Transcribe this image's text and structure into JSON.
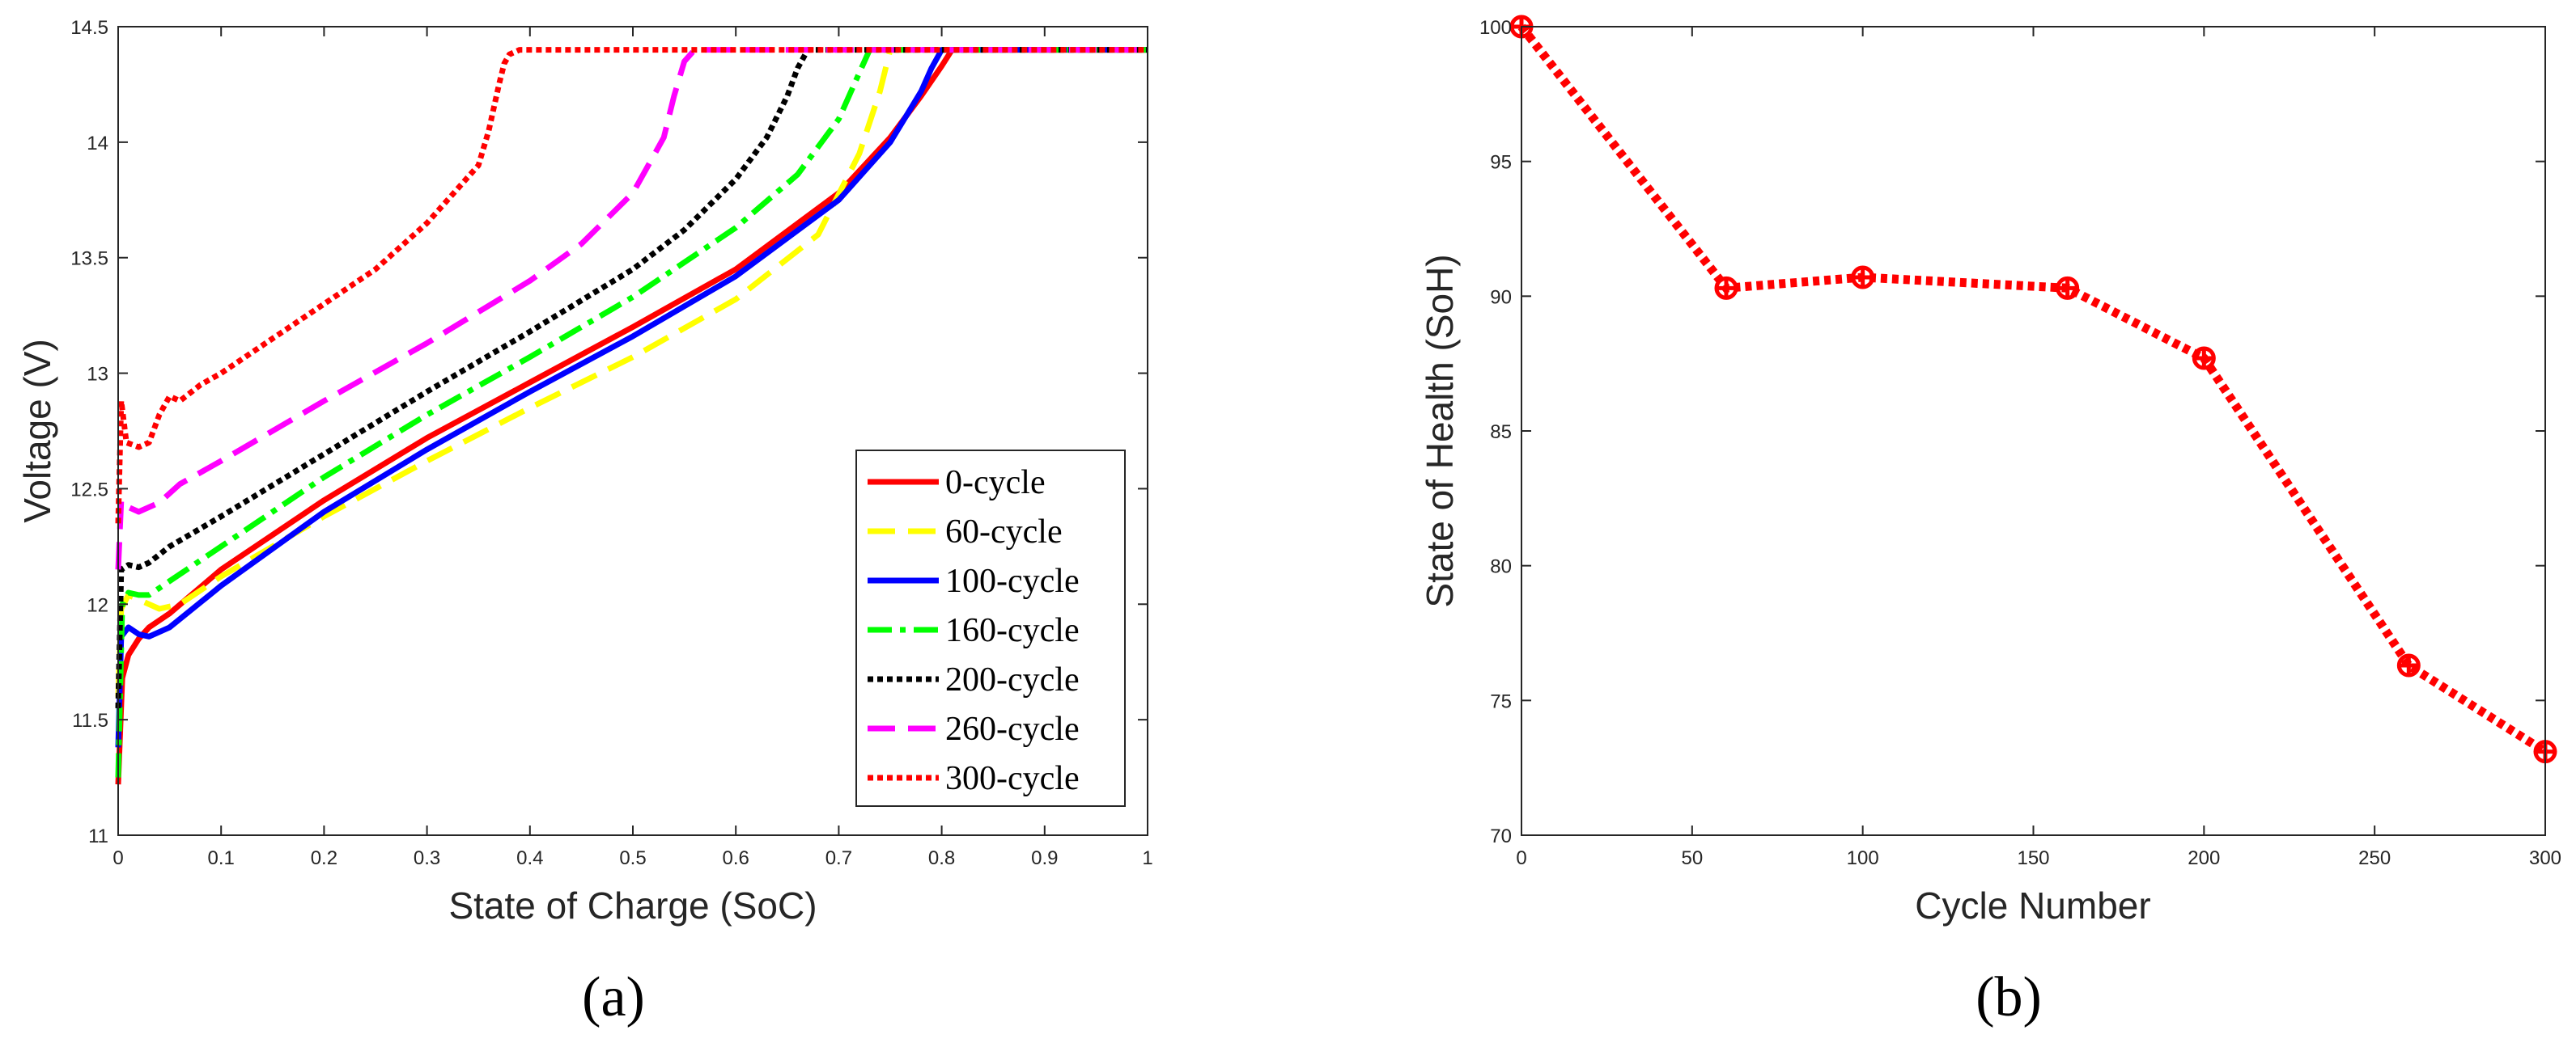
{
  "figure": {
    "panel_a_label": "(a)",
    "panel_b_label": "(b)"
  },
  "colors": {
    "red": "#ff0000",
    "yellow": "#ffff00",
    "blue": "#0000ff",
    "green": "#00ff00",
    "black": "#000000",
    "magenta": "#ff00ff"
  },
  "chart_data": [
    {
      "id": "a",
      "type": "line",
      "title": "",
      "xlabel": "State of Charge (SoC)",
      "ylabel": "Voltage (V)",
      "xlim": [
        0,
        1
      ],
      "ylim": [
        11,
        14.5
      ],
      "xticks": [
        0,
        0.1,
        0.2,
        0.3,
        0.4,
        0.5,
        0.6,
        0.7,
        0.8,
        0.9,
        1
      ],
      "xtick_labels": [
        "0",
        "0.1",
        "0.2",
        "0.3",
        "0.4",
        "0.5",
        "0.6",
        "0.7",
        "0.8",
        "0.9",
        "1"
      ],
      "yticks": [
        11,
        11.5,
        12,
        12.5,
        13,
        13.5,
        14,
        14.5
      ],
      "ytick_labels": [
        "11",
        "11.5",
        "12",
        "12.5",
        "13",
        "13.5",
        "14",
        "14.5"
      ],
      "grid": false,
      "legend_position": "bottom-right",
      "series": [
        {
          "name": "0-cycle",
          "color": "#ff0000",
          "style": "solid",
          "x": [
            0,
            0.004,
            0.01,
            0.02,
            0.03,
            0.05,
            0.1,
            0.2,
            0.3,
            0.4,
            0.5,
            0.6,
            0.7,
            0.75,
            0.78,
            0.8,
            0.81,
            1
          ],
          "y": [
            11.22,
            11.68,
            11.78,
            11.85,
            11.9,
            11.96,
            12.15,
            12.45,
            12.72,
            12.96,
            13.2,
            13.45,
            13.78,
            14.02,
            14.2,
            14.33,
            14.4,
            14.4
          ]
        },
        {
          "name": "60-cycle",
          "color": "#ffff00",
          "style": "dashed",
          "x": [
            0,
            0.003,
            0.01,
            0.02,
            0.04,
            0.06,
            0.1,
            0.2,
            0.3,
            0.4,
            0.5,
            0.6,
            0.68,
            0.72,
            0.74,
            0.75,
            1
          ],
          "y": [
            11.6,
            11.98,
            12.04,
            12.02,
            11.98,
            12.0,
            12.12,
            12.38,
            12.62,
            12.85,
            13.07,
            13.32,
            13.6,
            13.95,
            14.22,
            14.4,
            14.4
          ]
        },
        {
          "name": "100-cycle",
          "color": "#0000ff",
          "style": "solid",
          "x": [
            0,
            0.003,
            0.01,
            0.02,
            0.03,
            0.05,
            0.1,
            0.2,
            0.3,
            0.4,
            0.5,
            0.6,
            0.7,
            0.75,
            0.78,
            0.79,
            0.8,
            1
          ],
          "y": [
            11.38,
            11.86,
            11.9,
            11.87,
            11.86,
            11.9,
            12.08,
            12.4,
            12.67,
            12.92,
            13.16,
            13.42,
            13.75,
            14.0,
            14.22,
            14.32,
            14.4,
            14.4
          ]
        },
        {
          "name": "160-cycle",
          "color": "#00ff00",
          "style": "dashdot",
          "x": [
            0,
            0.004,
            0.01,
            0.02,
            0.03,
            0.05,
            0.1,
            0.2,
            0.3,
            0.4,
            0.5,
            0.6,
            0.66,
            0.7,
            0.72,
            0.73,
            1
          ],
          "y": [
            11.25,
            12.0,
            12.05,
            12.04,
            12.04,
            12.1,
            12.25,
            12.55,
            12.82,
            13.07,
            13.33,
            13.63,
            13.86,
            14.1,
            14.3,
            14.4,
            14.4
          ]
        },
        {
          "name": "200-cycle",
          "color": "#000000",
          "style": "dotted",
          "x": [
            0,
            0.003,
            0.01,
            0.02,
            0.03,
            0.05,
            0.1,
            0.2,
            0.3,
            0.4,
            0.5,
            0.55,
            0.6,
            0.63,
            0.65,
            0.66,
            0.67,
            1
          ],
          "y": [
            11.55,
            12.15,
            12.17,
            12.16,
            12.18,
            12.25,
            12.38,
            12.65,
            12.92,
            13.18,
            13.45,
            13.62,
            13.84,
            14.02,
            14.2,
            14.32,
            14.4,
            14.4
          ]
        },
        {
          "name": "260-cycle",
          "color": "#ff00ff",
          "style": "dashed",
          "x": [
            0,
            0.003,
            0.01,
            0.02,
            0.04,
            0.06,
            0.1,
            0.2,
            0.3,
            0.4,
            0.45,
            0.5,
            0.53,
            0.54,
            0.55,
            0.56,
            1
          ],
          "y": [
            12.15,
            12.45,
            12.42,
            12.4,
            12.44,
            12.52,
            12.62,
            12.88,
            13.13,
            13.4,
            13.56,
            13.78,
            14.02,
            14.2,
            14.35,
            14.4,
            14.4
          ]
        },
        {
          "name": "300-cycle",
          "color": "#ff0000",
          "style": "dotted",
          "x": [
            0,
            0.003,
            0.008,
            0.02,
            0.03,
            0.04,
            0.05,
            0.06,
            0.08,
            0.1,
            0.15,
            0.2,
            0.25,
            0.3,
            0.33,
            0.35,
            0.36,
            0.37,
            0.375,
            0.38,
            0.39,
            1
          ],
          "y": [
            12.35,
            12.88,
            12.7,
            12.68,
            12.7,
            12.82,
            12.9,
            12.88,
            12.95,
            13.0,
            13.15,
            13.3,
            13.45,
            13.65,
            13.8,
            13.9,
            14.05,
            14.25,
            14.34,
            14.38,
            14.4,
            14.4
          ]
        }
      ]
    },
    {
      "id": "b",
      "type": "line",
      "title": "",
      "xlabel": "Cycle Number",
      "ylabel": "State of Health (SoH)",
      "xlim": [
        0,
        300
      ],
      "ylim": [
        70,
        100
      ],
      "xticks": [
        0,
        50,
        100,
        150,
        200,
        250,
        300
      ],
      "xtick_labels": [
        "0",
        "50",
        "100",
        "150",
        "200",
        "250",
        "300"
      ],
      "yticks": [
        70,
        75,
        80,
        85,
        90,
        95,
        100
      ],
      "ytick_labels": [
        "70",
        "75",
        "80",
        "85",
        "90",
        "95",
        "100"
      ],
      "grid": false,
      "series": [
        {
          "name": "SoH",
          "color": "#ff0000",
          "style": "dotted",
          "marker": "plus-circle",
          "x": [
            0,
            60,
            100,
            160,
            200,
            260,
            300
          ],
          "y": [
            100,
            90.3,
            90.7,
            90.3,
            87.7,
            76.3,
            73.1
          ]
        }
      ]
    }
  ]
}
